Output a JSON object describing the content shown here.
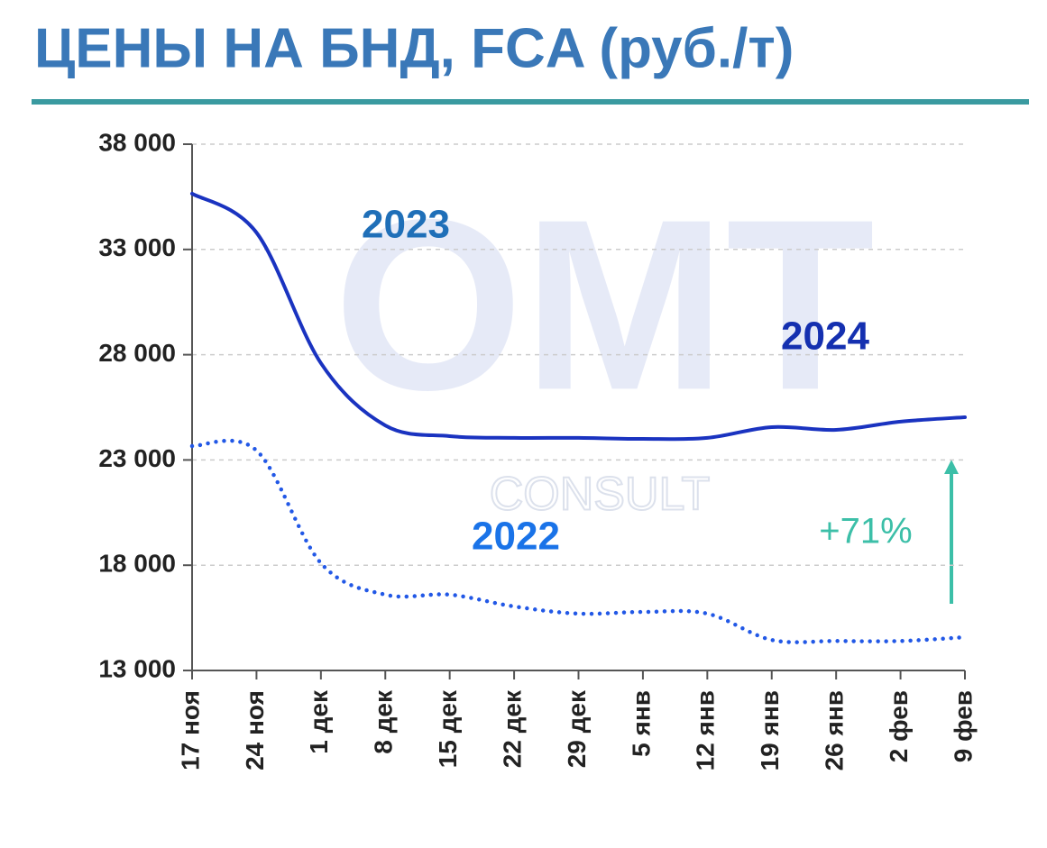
{
  "chart_data": {
    "type": "line",
    "title": "ЦЕНЫ НА БНД, FCA (руб./т)",
    "categories": [
      "17 ноя",
      "24 ноя",
      "1 дек",
      "8 дек",
      "15 дек",
      "22 дек",
      "29 дек",
      "5 янв",
      "12 янв",
      "19 янв",
      "26 янв",
      "2 фев",
      "9 фев"
    ],
    "series": [
      {
        "name": "2023",
        "color": "#1a33c0",
        "style": "solid",
        "label_color": "#1f6fb8",
        "values": [
          35650,
          33800,
          27600,
          24640,
          24130,
          24050,
          24050,
          24000,
          24050,
          24560,
          24430,
          24820,
          25030
        ]
      },
      {
        "name": "2022",
        "color": "#2258e6",
        "style": "dotted",
        "label_color": "#1a73e8",
        "values": [
          23660,
          23450,
          18100,
          16600,
          16600,
          16040,
          15700,
          15780,
          15700,
          14450,
          14400,
          14400,
          14580
        ]
      }
    ],
    "ylim": [
      13000,
      38000
    ],
    "yticks": [
      {
        "value": 13000,
        "label": "13 000"
      },
      {
        "value": 18000,
        "label": "18 000"
      },
      {
        "value": 23000,
        "label": "23 000"
      },
      {
        "value": 28000,
        "label": "28 000"
      },
      {
        "value": 33000,
        "label": "33 000"
      },
      {
        "value": 38000,
        "label": "38 000"
      }
    ],
    "grid": true,
    "annotations": {
      "season_label": "2024",
      "change": "+71%"
    },
    "watermark": [
      "OMT",
      "CONSULT"
    ]
  }
}
